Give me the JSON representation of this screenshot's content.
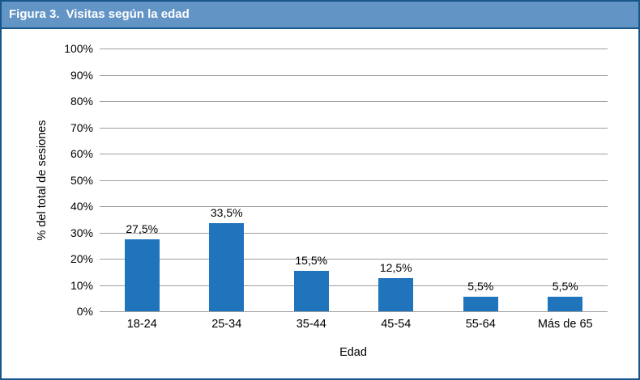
{
  "figure": {
    "label": "Figura 3.",
    "title": "Visitas según la edad"
  },
  "chart_data": {
    "type": "bar",
    "title": "Figura 3. Visitas según la edad",
    "categories": [
      "18-24",
      "25-34",
      "35-44",
      "45-54",
      "55-64",
      "Más de 65"
    ],
    "values": [
      27.5,
      33.5,
      15.5,
      12.5,
      5.5,
      5.5
    ],
    "value_labels": [
      "27,5%",
      "33,5%",
      "15,5%",
      "12,5%",
      "5,5%",
      "5,5%"
    ],
    "xlabel": "Edad",
    "ylabel": "% del total de sesiones",
    "ylim": [
      0,
      100
    ],
    "ytick_step": 10,
    "ytick_labels": [
      "0%",
      "10%",
      "20%",
      "30%",
      "40%",
      "50%",
      "60%",
      "70%",
      "80%",
      "90%",
      "100%"
    ],
    "grid": "horizontal",
    "legend": "none",
    "bar_color": "#1F74BC",
    "gridline_color": "#9E9E9E"
  },
  "colors": {
    "header_background": "#6294C6",
    "header_text": "#FFFFFF",
    "figure_border": "#17568A",
    "text": "#000000"
  }
}
